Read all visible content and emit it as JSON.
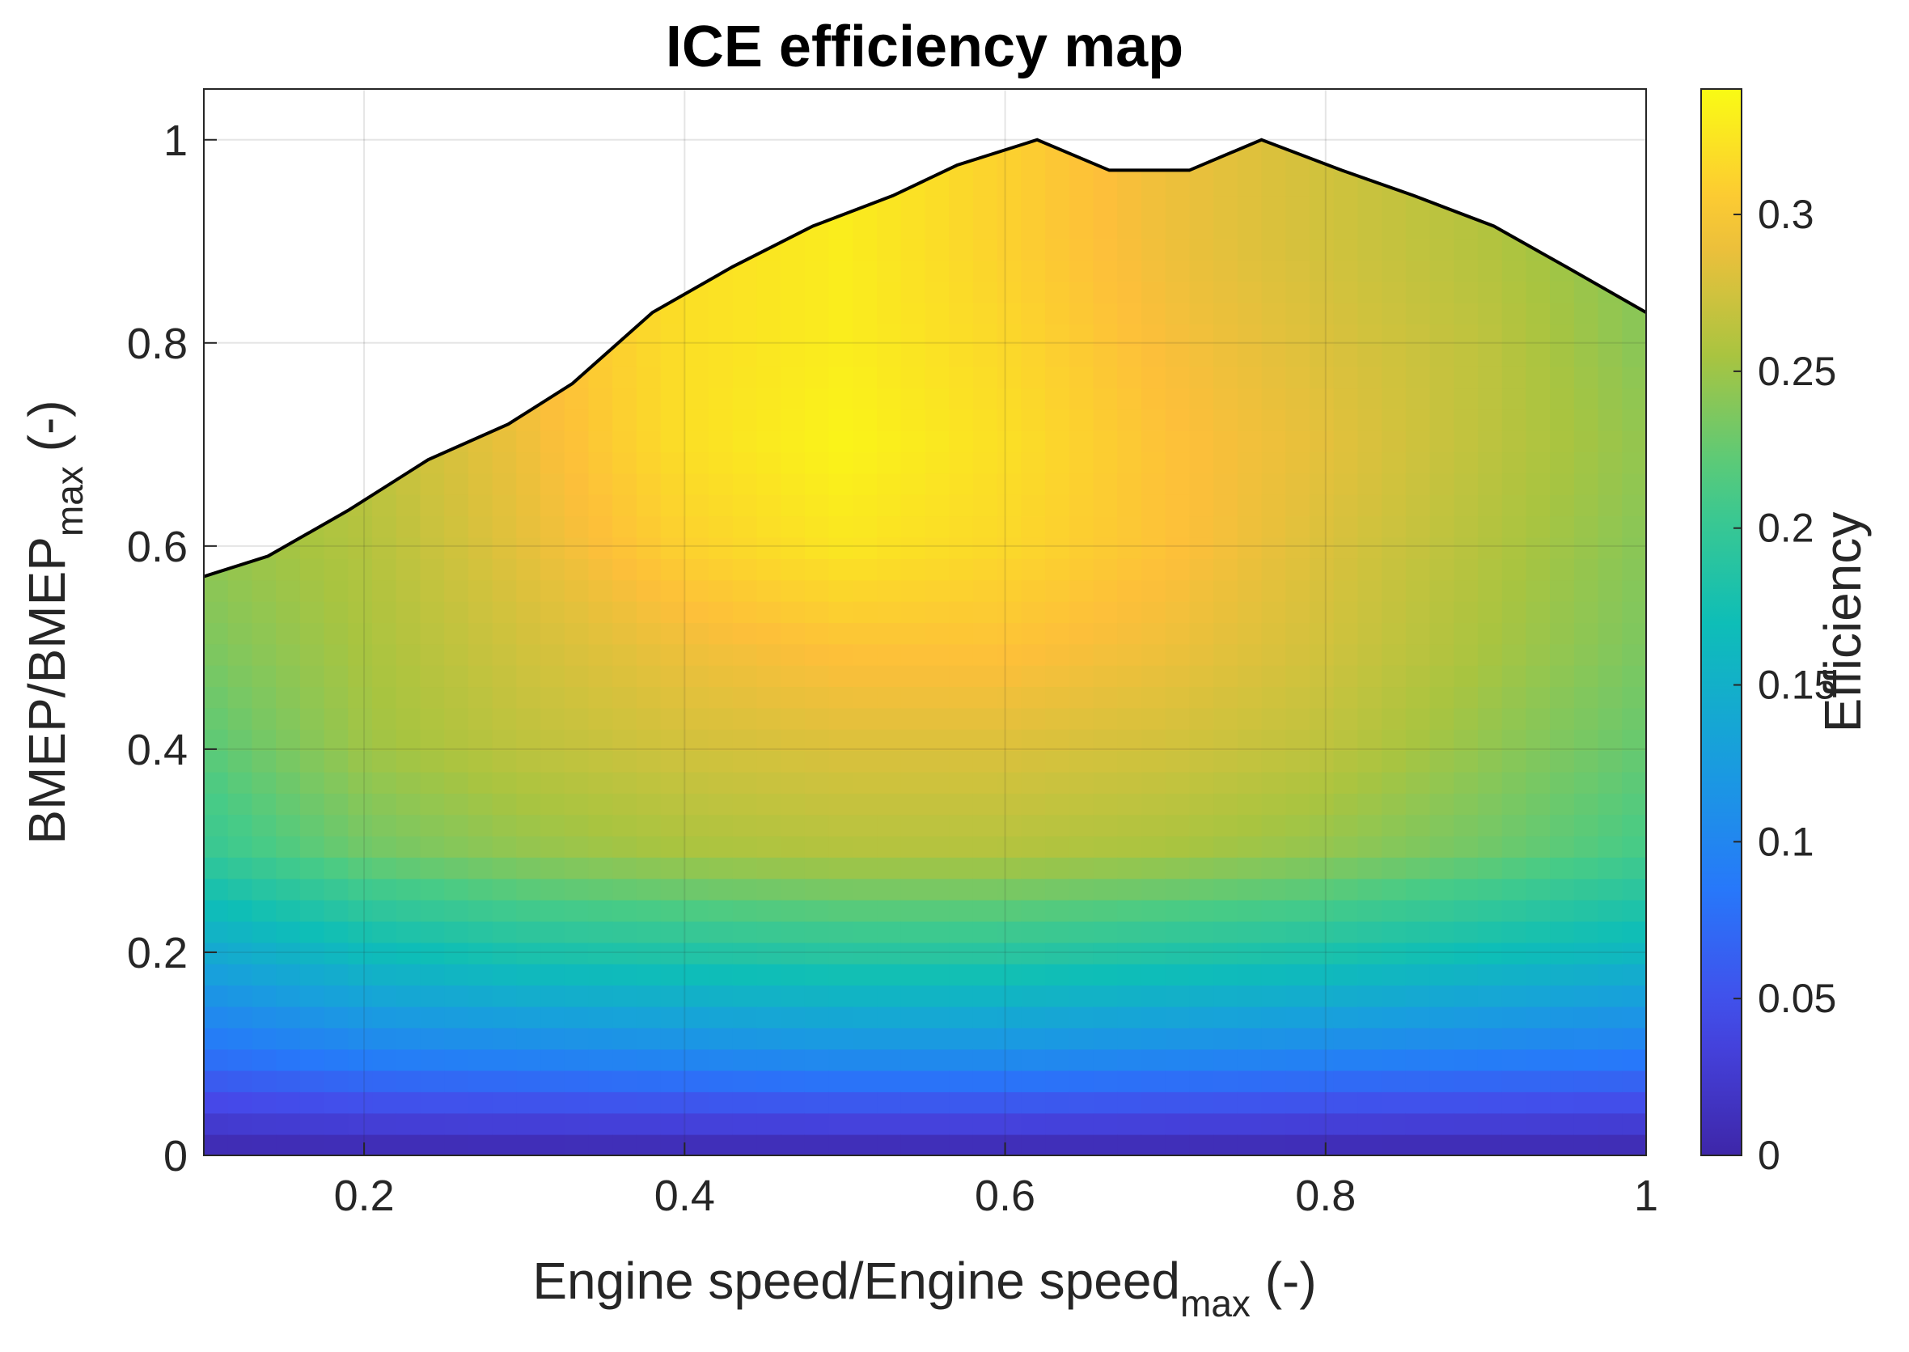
{
  "chart_data": {
    "type": "heatmap",
    "title": "ICE efficiency map",
    "xlabel": {
      "main": "Engine speed/Engine speed",
      "sub": "max",
      "suffix": " (-)"
    },
    "ylabel": {
      "main": "BMEP/BMEP",
      "sub": "max",
      "suffix": " (-)"
    },
    "xlim": [
      0.1,
      1.0
    ],
    "ylim": [
      0.0,
      1.05
    ],
    "xticks": [
      0.2,
      0.4,
      0.6,
      0.8,
      1.0
    ],
    "xtick_labels": [
      "0.2",
      "0.4",
      "0.6",
      "0.8",
      "1"
    ],
    "yticks": [
      0,
      0.2,
      0.4,
      0.6,
      0.8,
      1.0
    ],
    "ytick_labels": [
      "0",
      "0.2",
      "0.4",
      "0.6",
      "0.8",
      "1"
    ],
    "grid": true,
    "colormap": "parula",
    "colorbar": {
      "label": "Efficiency",
      "lim": [
        0,
        0.34
      ],
      "ticks": [
        0,
        0.05,
        0.1,
        0.15,
        0.2,
        0.25,
        0.3
      ],
      "tick_labels": [
        "0",
        "0.05",
        "0.1",
        "0.15",
        "0.2",
        "0.25",
        "0.3"
      ]
    },
    "boundary": {
      "x": [
        0.1,
        0.14,
        0.19,
        0.24,
        0.29,
        0.33,
        0.38,
        0.43,
        0.48,
        0.53,
        0.57,
        0.62,
        0.665,
        0.715,
        0.76,
        0.81,
        0.855,
        0.905,
        0.95,
        1.0
      ],
      "y": [
        0.57,
        0.59,
        0.635,
        0.685,
        0.72,
        0.76,
        0.83,
        0.875,
        0.915,
        0.945,
        0.975,
        1.0,
        0.97,
        0.97,
        1.0,
        0.97,
        0.945,
        0.915,
        0.875,
        0.83
      ]
    },
    "efficiency_grid": {
      "x": [
        0.1,
        0.2,
        0.3,
        0.4,
        0.5,
        0.6,
        0.7,
        0.8,
        0.9,
        1.0
      ],
      "y": [
        0.0,
        0.1,
        0.2,
        0.3,
        0.4,
        0.5,
        0.6,
        0.7,
        0.8,
        0.9,
        1.0
      ],
      "z": [
        [
          0.0,
          0.0,
          0.0,
          0.0,
          0.0,
          0.0,
          0.0,
          0.0,
          0.0,
          0.0
        ],
        [
          0.08,
          0.095,
          0.1,
          0.105,
          0.11,
          0.11,
          0.105,
          0.1,
          0.095,
          0.09
        ],
        [
          0.14,
          0.165,
          0.18,
          0.185,
          0.19,
          0.19,
          0.185,
          0.18,
          0.17,
          0.16
        ],
        [
          0.2,
          0.23,
          0.245,
          0.255,
          0.26,
          0.26,
          0.255,
          0.245,
          0.23,
          0.21
        ],
        [
          0.22,
          0.25,
          0.265,
          0.275,
          0.28,
          0.28,
          0.275,
          0.265,
          0.245,
          0.225
        ],
        [
          0.235,
          0.255,
          0.275,
          0.29,
          0.3,
          0.3,
          0.29,
          0.275,
          0.255,
          0.235
        ],
        [
          0.245,
          0.26,
          0.285,
          0.31,
          0.325,
          0.315,
          0.3,
          0.28,
          0.26,
          0.24
        ],
        [
          0.25,
          0.265,
          0.29,
          0.32,
          0.335,
          0.32,
          0.3,
          0.285,
          0.265,
          0.245
        ],
        [
          0.25,
          0.265,
          0.295,
          0.32,
          0.33,
          0.315,
          0.295,
          0.28,
          0.265,
          0.24
        ],
        [
          0.25,
          0.265,
          0.3,
          0.32,
          0.33,
          0.31,
          0.29,
          0.275,
          0.26,
          0.24
        ],
        [
          0.25,
          0.265,
          0.3,
          0.32,
          0.33,
          0.31,
          0.29,
          0.275,
          0.26,
          0.24
        ]
      ]
    }
  }
}
